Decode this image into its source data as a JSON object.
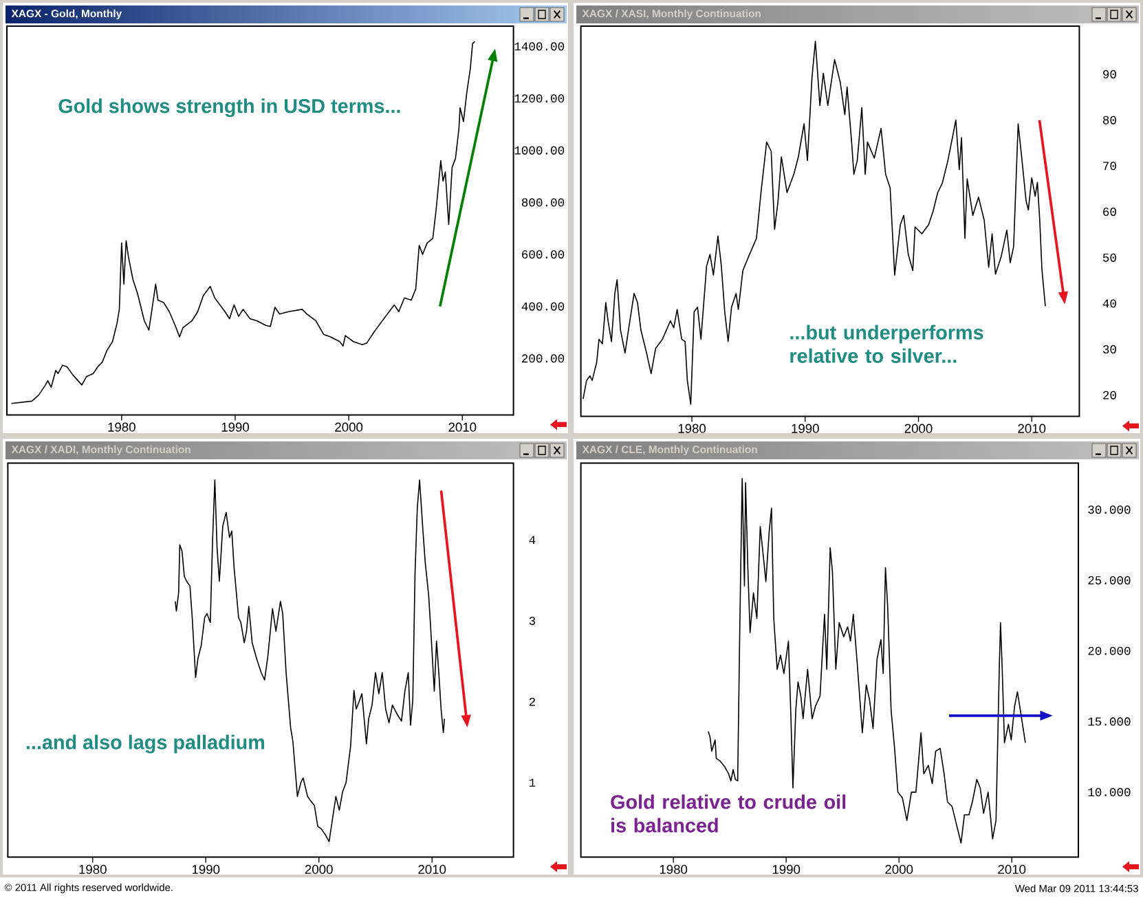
{
  "chart_data": [
    {
      "type": "line",
      "title": "XAGX - Gold, Monthly",
      "annotations": [
        "Gold shows strength in USD terms..."
      ],
      "x": [
        1970.3,
        1972.1,
        1972.7,
        1973.3,
        1973.5,
        1973.8,
        1974.2,
        1974.4,
        1974.8,
        1975.2,
        1975.7,
        1976.5,
        1976.9,
        1977.5,
        1977.9,
        1978.3,
        1978.7,
        1979.2,
        1979.6,
        1979.8,
        1980.0,
        1980.2,
        1980.4,
        1980.6,
        1981.0,
        1981.4,
        1982.0,
        1982.4,
        1982.7,
        1983.0,
        1983.2,
        1983.7,
        1984.2,
        1984.8,
        1985.1,
        1985.4,
        1986.2,
        1986.7,
        1987.2,
        1987.8,
        1988.2,
        1989.1,
        1989.5,
        1989.9,
        1990.3,
        1990.7,
        1991.3,
        1991.9,
        1992.7,
        1993.1,
        1993.5,
        1993.9,
        1994.7,
        1995.9,
        1996.3,
        1997.1,
        1997.8,
        1998.4,
        1999.2,
        1999.5,
        1999.7,
        2000.4,
        2001.2,
        2001.6,
        2002.2,
        2002.8,
        2003.4,
        2004.0,
        2004.4,
        2004.9,
        2005.5,
        2005.9,
        2006.2,
        2006.5,
        2006.9,
        2007.4,
        2007.7,
        2008.1,
        2008.3,
        2008.5,
        2008.8,
        2009.1,
        2009.4,
        2009.7,
        2009.8,
        2010.1,
        2010.4,
        2010.7,
        2010.9,
        2011.1
      ],
      "series": [
        {
          "color": "#000000",
          "values": [
            27,
            36,
            59,
            98,
            115,
            89,
            154,
            142,
            174,
            168,
            137,
            98,
            130,
            142,
            168,
            186,
            230,
            265,
            336,
            389,
            644,
            486,
            653,
            591,
            503,
            450,
            345,
            309,
            397,
            486,
            424,
            415,
            380,
            318,
            283,
            318,
            345,
            380,
            442,
            477,
            433,
            380,
            353,
            406,
            362,
            389,
            353,
            345,
            327,
            323,
            397,
            371,
            380,
            389,
            371,
            345,
            292,
            283,
            265,
            248,
            288,
            265,
            253,
            260,
            300,
            336,
            371,
            406,
            380,
            433,
            424,
            468,
            635,
            600,
            644,
            662,
            776,
            961,
            882,
            917,
            715,
            935,
            970,
            1085,
            1164,
            1111,
            1226,
            1314,
            1411,
            1419
          ]
        }
      ],
      "xlim": [
        1969.9,
        2014.5
      ],
      "ylim": [
        -17,
        1478
      ],
      "xticks": [
        1980,
        1990,
        2000,
        2010
      ],
      "yticks": [
        {
          "value": 200,
          "label": "200.00"
        },
        {
          "value": 400,
          "label": "400.00"
        },
        {
          "value": 600,
          "label": "600.00"
        },
        {
          "value": 800,
          "label": "800.00"
        },
        {
          "value": 1000,
          "label": "1000.00"
        },
        {
          "value": 1200,
          "label": "1200.00"
        },
        {
          "value": 1400,
          "label": "1400.00"
        }
      ]
    },
    {
      "type": "line",
      "title": "XAGX / XASI, Monthly Continuation",
      "annotations": [
        "...but underperforms relative to silver..."
      ],
      "x": [
        1970.4,
        1970.7,
        1971.0,
        1971.2,
        1971.6,
        1971.8,
        1972.1,
        1972.4,
        1972.6,
        1972.9,
        1973.2,
        1973.4,
        1973.7,
        1974.1,
        1974.4,
        1974.9,
        1975.2,
        1975.5,
        1976.0,
        1976.4,
        1976.8,
        1977.4,
        1978.1,
        1978.4,
        1978.7,
        1979.1,
        1979.4,
        1979.6,
        1979.9,
        1980.2,
        1980.5,
        1980.8,
        1981.3,
        1981.6,
        1981.9,
        1982.3,
        1982.6,
        1982.9,
        1983.2,
        1983.5,
        1983.9,
        1984.1,
        1984.5,
        1985.0,
        1985.7,
        1986.1,
        1986.6,
        1987.0,
        1987.3,
        1987.6,
        1987.9,
        1988.4,
        1989.0,
        1989.4,
        1989.9,
        1990.2,
        1990.6,
        1990.9,
        1991.3,
        1991.6,
        1992.0,
        1992.6,
        1993.1,
        1993.5,
        1993.7,
        1994.1,
        1994.3,
        1994.6,
        1995.0,
        1995.3,
        1995.5,
        1996.1,
        1996.7,
        1997.1,
        1997.5,
        1997.9,
        1998.4,
        1998.7,
        1999.1,
        1999.5,
        1999.7,
        2000.3,
        2000.9,
        2001.3,
        2001.7,
        2002.1,
        2002.6,
        2003.0,
        2003.3,
        2003.6,
        2003.8,
        2004.1,
        2004.3,
        2004.8,
        2005.3,
        2005.8,
        2006.2,
        2006.5,
        2006.8,
        2007.3,
        2007.8,
        2008.1,
        2008.4,
        2008.8,
        2009.1,
        2009.5,
        2009.7,
        2010.0,
        2010.3,
        2010.5,
        2010.7,
        2010.9,
        2011.2
      ],
      "series": [
        {
          "color": "#000000",
          "values": [
            19.2,
            23.2,
            24.2,
            23.2,
            27.2,
            32.2,
            31.2,
            40.2,
            36.2,
            31.7,
            42.2,
            45.2,
            34.2,
            29.2,
            34.2,
            42.2,
            40.2,
            34.2,
            29.2,
            24.7,
            30.2,
            32.2,
            36.2,
            34.7,
            38.7,
            32.2,
            31.7,
            23.2,
            18.0,
            38.2,
            39.2,
            32.2,
            48.2,
            50.7,
            46.2,
            54.7,
            48.2,
            38.2,
            31.7,
            39.2,
            42.2,
            38.7,
            47.2,
            50.2,
            54.2,
            64.2,
            75.2,
            73.2,
            56.2,
            62.2,
            72.0,
            64.2,
            68.2,
            72.0,
            79.2,
            71.2,
            89.2,
            97.2,
            83.2,
            90.2,
            83.2,
            93.2,
            88.2,
            81.2,
            87.2,
            75.2,
            68.2,
            71.2,
            82.7,
            68.2,
            75.2,
            71.7,
            78.2,
            68.2,
            65.2,
            46.2,
            57.2,
            59.2,
            50.7,
            47.2,
            56.7,
            55.2,
            57.2,
            60.2,
            64.2,
            66.2,
            71.2,
            76.2,
            80.0,
            69.2,
            76.2,
            54.2,
            67.2,
            59.2,
            63.2,
            58.2,
            47.9,
            55.2,
            46.4,
            50.2,
            56.0,
            48.9,
            52.4,
            79.2,
            72.2,
            62.4,
            60.4,
            67.4,
            63.4,
            66.4,
            58.4,
            47.4,
            39.4
          ]
        }
      ],
      "xlim": [
        1970.2,
        2014.2
      ],
      "ylim": [
        15.4,
        100.5
      ],
      "xticks": [
        1980,
        1990,
        2000,
        2010
      ],
      "yticks": [
        20,
        30,
        40,
        50,
        60,
        70,
        80,
        90
      ]
    },
    {
      "type": "line",
      "title": "XAGX / XADI, Monthly Continuation",
      "annotations": [
        "...and also lags palladium",
        "© 2011 All rights reserved worldwide."
      ],
      "x": [
        1987.3,
        1987.4,
        1987.6,
        1987.7,
        1987.9,
        1988.1,
        1988.3,
        1988.6,
        1988.8,
        1989.1,
        1989.3,
        1989.6,
        1989.9,
        1990.1,
        1990.4,
        1990.6,
        1990.8,
        1991.0,
        1991.2,
        1991.5,
        1991.8,
        1992.1,
        1992.3,
        1992.5,
        1992.9,
        1993.1,
        1993.4,
        1993.6,
        1993.8,
        1994.1,
        1994.5,
        1994.9,
        1995.2,
        1995.5,
        1995.9,
        1996.2,
        1996.6,
        1996.8,
        1997.1,
        1997.5,
        1997.7,
        1998.1,
        1998.4,
        1998.6,
        1999.0,
        1999.3,
        1999.6,
        1999.9,
        2000.2,
        2000.6,
        2000.9,
        2001.2,
        2001.5,
        2001.8,
        2002.1,
        2002.4,
        2002.8,
        2003.1,
        2003.3,
        2003.6,
        2003.8,
        2004.2,
        2004.4,
        2004.7,
        2005.0,
        2005.3,
        2005.6,
        2005.9,
        2006.2,
        2006.5,
        2006.9,
        2007.3,
        2007.6,
        2007.9,
        2008.1,
        2008.3,
        2008.5,
        2008.7,
        2008.9,
        2009.2,
        2009.4,
        2009.7,
        2009.9,
        2010.2,
        2010.4,
        2010.6,
        2010.8,
        2011.0,
        2011.1
      ],
      "series": [
        {
          "color": "#000000",
          "values": [
            3.24,
            3.12,
            3.35,
            3.94,
            3.86,
            3.55,
            3.49,
            3.43,
            3.04,
            2.3,
            2.53,
            2.7,
            3.04,
            3.09,
            2.98,
            4.0,
            4.74,
            3.89,
            3.49,
            4.17,
            4.34,
            4.03,
            4.11,
            3.66,
            3.04,
            2.98,
            2.73,
            2.87,
            3.18,
            2.73,
            2.53,
            2.36,
            2.27,
            2.58,
            3.15,
            2.87,
            3.24,
            3.09,
            2.36,
            1.68,
            1.51,
            0.83,
            1.0,
            1.06,
            0.83,
            0.77,
            0.72,
            0.46,
            0.43,
            0.35,
            0.27,
            0.55,
            0.83,
            0.66,
            0.89,
            1.0,
            1.45,
            2.14,
            1.91,
            2.02,
            2.1,
            1.48,
            1.79,
            1.96,
            2.36,
            2.1,
            2.36,
            1.91,
            1.74,
            1.96,
            1.85,
            1.76,
            2.13,
            2.36,
            1.71,
            2.02,
            3.6,
            4.4,
            4.74,
            4.11,
            3.72,
            3.32,
            2.87,
            2.13,
            2.75,
            2.36,
            1.91,
            1.62,
            1.79
          ]
        }
      ],
      "xlim": [
        1972.5,
        2017.2
      ],
      "ylim": [
        0.08,
        4.95
      ],
      "xticks": [
        1980,
        1990,
        2000,
        2010
      ],
      "yticks": [
        1,
        2,
        3,
        4
      ]
    },
    {
      "type": "line",
      "title": "XAGX / CLE, Monthly Continuation",
      "annotations": [
        "Gold relative to crude oil is balanced",
        "Wed Mar 09 2011 13:44:53"
      ],
      "x": [
        1983.1,
        1983.25,
        1983.4,
        1983.7,
        1983.8,
        1984.15,
        1984.55,
        1984.9,
        1985.1,
        1985.3,
        1985.5,
        1985.7,
        1985.9,
        1986.1,
        1986.3,
        1986.4,
        1986.6,
        1986.8,
        1987.1,
        1987.4,
        1987.7,
        1988.0,
        1988.2,
        1988.5,
        1988.7,
        1988.9,
        1989.2,
        1989.5,
        1989.8,
        1990.2,
        1990.4,
        1990.6,
        1990.85,
        1991.05,
        1991.3,
        1991.5,
        1991.9,
        1992.3,
        1992.6,
        1993.0,
        1993.4,
        1993.6,
        1993.9,
        1994.1,
        1994.4,
        1994.7,
        1995.1,
        1995.45,
        1995.7,
        1995.95,
        1996.3,
        1996.75,
        1997.1,
        1997.4,
        1997.7,
        1998.05,
        1998.4,
        1998.6,
        1998.8,
        1999.0,
        1999.3,
        1999.6,
        1999.9,
        2000.3,
        2000.7,
        2001.1,
        2001.5,
        2001.95,
        2002.2,
        2002.6,
        2002.95,
        2003.25,
        2003.65,
        2004.0,
        2004.3,
        2004.7,
        2005.1,
        2005.5,
        2005.8,
        2006.2,
        2006.5,
        2006.9,
        2007.2,
        2007.5,
        2007.9,
        2008.3,
        2008.6,
        2008.9,
        2009.0,
        2009.15,
        2009.35,
        2009.7,
        2009.95,
        2010.25,
        2010.5,
        2010.7,
        2010.95,
        2011.2
      ],
      "series": [
        {
          "color": "#000000",
          "values": [
            14.3,
            13.9,
            12.9,
            13.7,
            12.4,
            12.2,
            11.8,
            11.3,
            10.8,
            11.6,
            10.9,
            10.8,
            22.3,
            32.2,
            24.6,
            31.9,
            25.9,
            21.3,
            24.1,
            22.3,
            28.8,
            26.5,
            24.9,
            28.5,
            30.1,
            22.3,
            18.7,
            19.7,
            18.4,
            20.7,
            15.8,
            10.3,
            15.8,
            17.8,
            16.8,
            15.2,
            18.7,
            15.2,
            16.1,
            16.8,
            22.6,
            18.7,
            27.3,
            25.6,
            18.7,
            22.0,
            21.0,
            21.7,
            20.7,
            22.6,
            19.1,
            14.2,
            17.6,
            16.5,
            14.5,
            19.4,
            20.8,
            18.4,
            25.9,
            23.1,
            15.8,
            13.2,
            10.0,
            9.6,
            8.0,
            10.0,
            10.0,
            14.2,
            11.3,
            11.9,
            10.6,
            12.9,
            13.1,
            11.3,
            9.3,
            9.0,
            7.7,
            6.4,
            8.4,
            8.4,
            9.3,
            10.9,
            10.3,
            8.5,
            10.0,
            6.7,
            8.0,
            19.1,
            22.0,
            18.7,
            13.5,
            14.8,
            13.7,
            16.1,
            17.1,
            16.1,
            14.8,
            13.5
          ]
        }
      ],
      "xlim": [
        1971.8,
        2015.9
      ],
      "ylim": [
        5.4,
        33.3
      ],
      "xticks": [
        1980,
        1990,
        2000,
        2010
      ],
      "yticks": [
        {
          "value": 10,
          "label": "10.000"
        },
        {
          "value": 15,
          "label": "15.000"
        },
        {
          "value": 20,
          "label": "20.000"
        },
        {
          "value": 25,
          "label": "25.000"
        },
        {
          "value": 30,
          "label": "30.000"
        }
      ]
    }
  ]
}
